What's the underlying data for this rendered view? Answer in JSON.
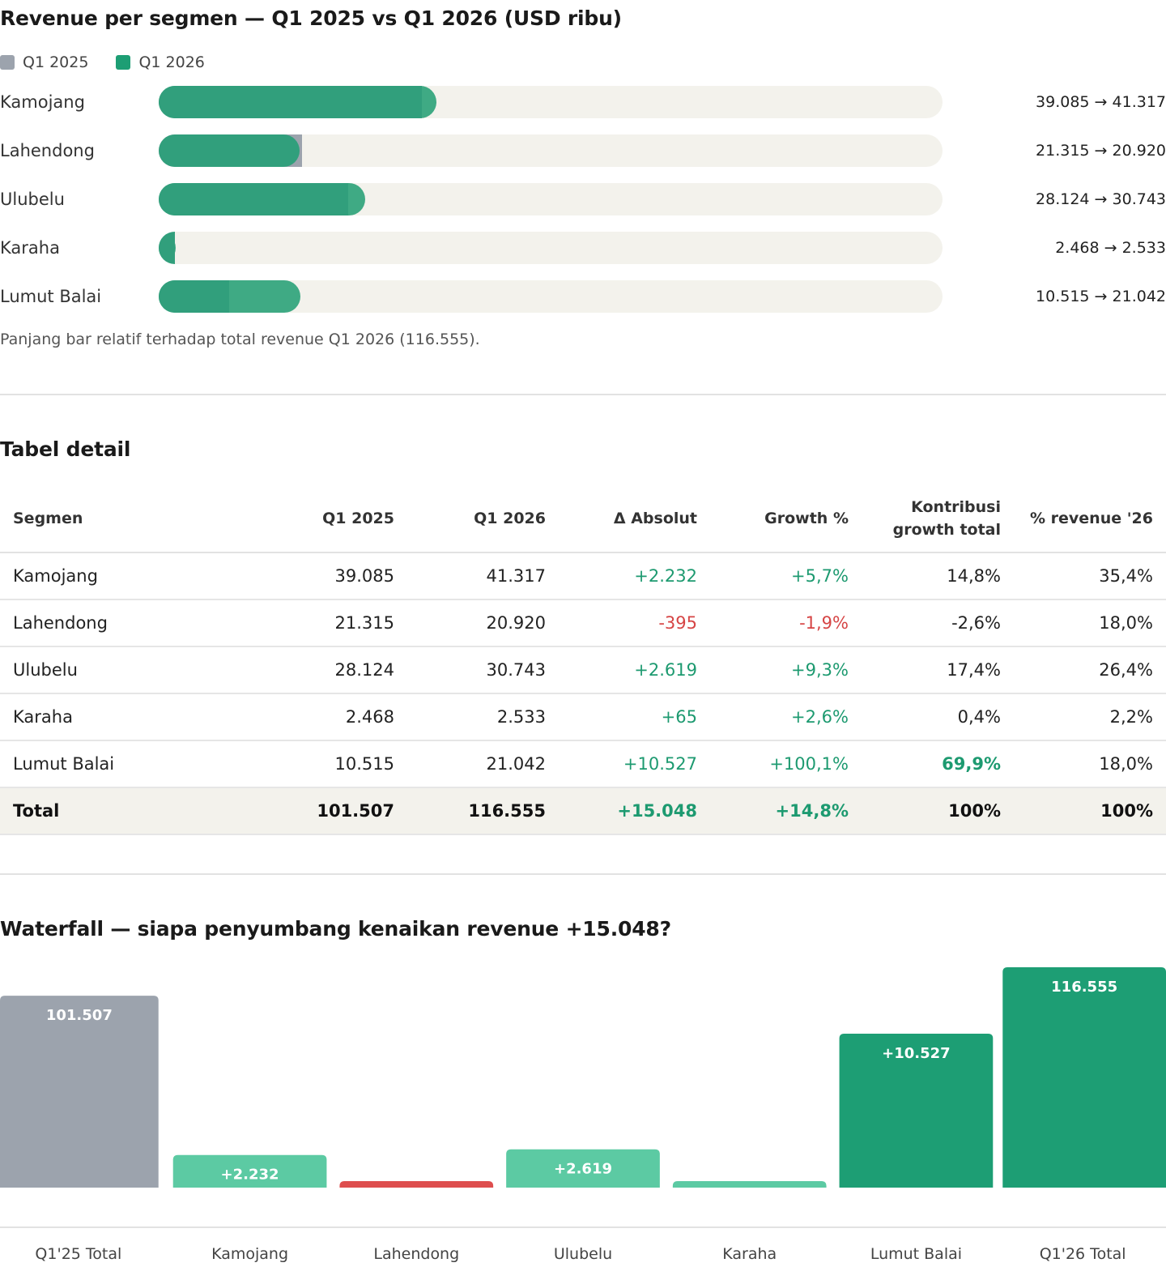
{
  "chart_data": [
    {
      "type": "bar",
      "title": "Revenue per segmen — Q1 2025 vs Q1 2026 (USD ribu)",
      "legend": [
        {
          "name": "Q1 2025",
          "color": "#9ca3ad"
        },
        {
          "name": "Q1 2026",
          "color": "#1d9e74"
        }
      ],
      "categories": [
        "Kamojang",
        "Lahendong",
        "Ulubelu",
        "Karaha",
        "Lumut Balai"
      ],
      "series": [
        {
          "name": "Q1 2025",
          "values": [
            39085,
            21315,
            28124,
            2468,
            10515
          ]
        },
        {
          "name": "Q1 2026",
          "values": [
            41317,
            20920,
            30743,
            2533,
            21042
          ]
        }
      ],
      "value_labels": [
        "39.085 → 41.317",
        "21.315 → 20.920",
        "28.124 → 30.743",
        "2.468 → 2.533",
        "10.515 → 21.042"
      ],
      "scale_max": 116555,
      "note": "Panjang bar relatif terhadap total revenue Q1 2026 (116.555)."
    },
    {
      "type": "table",
      "title": "Tabel detail",
      "columns": [
        "Segmen",
        "Q1 2025",
        "Q1 2026",
        "Δ Absolut",
        "Growth %",
        "Kontribusi growth total",
        "% revenue '26"
      ],
      "rows": [
        {
          "cells": [
            "Kamojang",
            "39.085",
            "41.317",
            "+2.232",
            "+5,7%",
            "14,8%",
            "35,4%"
          ],
          "sign": "pos"
        },
        {
          "cells": [
            "Lahendong",
            "21.315",
            "20.920",
            "-395",
            "-1,9%",
            "-2,6%",
            "18,0%"
          ],
          "sign": "neg"
        },
        {
          "cells": [
            "Ulubelu",
            "28.124",
            "30.743",
            "+2.619",
            "+9,3%",
            "17,4%",
            "26,4%"
          ],
          "sign": "pos"
        },
        {
          "cells": [
            "Karaha",
            "2.468",
            "2.533",
            "+65",
            "+2,6%",
            "0,4%",
            "2,2%"
          ],
          "sign": "pos"
        },
        {
          "cells": [
            "Lumut Balai",
            "10.515",
            "21.042",
            "+10.527",
            "+100,1%",
            "69,9%",
            "18,0%"
          ],
          "sign": "pos",
          "highlight_contribution": true
        }
      ],
      "total": [
        "Total",
        "101.507",
        "116.555",
        "+15.048",
        "+14,8%",
        "100%",
        "100%"
      ]
    },
    {
      "type": "bar",
      "title": "Waterfall — siapa penyumbang kenaikan revenue +15.048?",
      "categories": [
        "Q1'25 Total",
        "Kamojang",
        "Lahendong",
        "Ulubelu",
        "Karaha",
        "Lumut Balai",
        "Q1'26 Total"
      ],
      "values": [
        101507,
        2232,
        -395,
        2619,
        65,
        10527,
        116555
      ],
      "labels": [
        "101.507",
        "+2.232",
        "",
        "+2.619",
        "",
        "+10.527",
        "116.555"
      ],
      "kinds": [
        "total",
        "delta",
        "delta",
        "delta",
        "delta",
        "delta",
        "total"
      ],
      "colors": {
        "base_total": "#9ca3ad",
        "end_total": "#1d9e74",
        "positive_small": "#5ccaa3",
        "positive_large": "#1d9e74",
        "negative": "#de4e4e"
      }
    }
  ]
}
